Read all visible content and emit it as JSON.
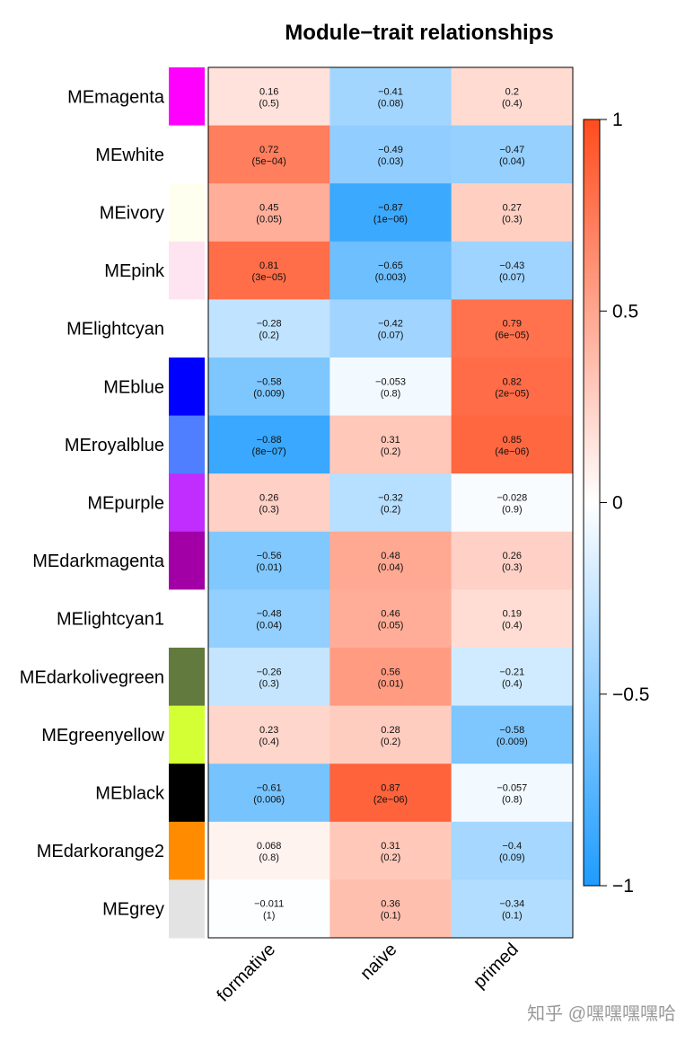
{
  "chart_data": {
    "type": "heatmap",
    "title": "Module−trait relationships",
    "columns": [
      "formative",
      "naive",
      "primed"
    ],
    "rows": [
      {
        "label": "MEmagenta",
        "module_color": "#FF00FF",
        "values": [
          0.16,
          -0.41,
          0.2
        ],
        "value_labels": [
          "0.16",
          "−0.41",
          "0.2"
        ],
        "pvalues": [
          "(0.5)",
          "(0.08)",
          "(0.4)"
        ]
      },
      {
        "label": "MEwhite",
        "module_color": "#FFFFFF",
        "values": [
          0.72,
          -0.49,
          -0.47
        ],
        "value_labels": [
          "0.72",
          "−0.49",
          "−0.47"
        ],
        "pvalues": [
          "(5e−04)",
          "(0.03)",
          "(0.04)"
        ]
      },
      {
        "label": "MEivory",
        "module_color": "#FFFFF0",
        "values": [
          0.45,
          -0.87,
          0.27
        ],
        "value_labels": [
          "0.45",
          "−0.87",
          "0.27"
        ],
        "pvalues": [
          "(0.05)",
          "(1e−06)",
          "(0.3)"
        ]
      },
      {
        "label": "MEpink",
        "module_color": "#FDE4F0",
        "values": [
          0.81,
          -0.65,
          -0.43
        ],
        "value_labels": [
          "0.81",
          "−0.65",
          "−0.43"
        ],
        "pvalues": [
          "(3e−05)",
          "(0.003)",
          "(0.07)"
        ]
      },
      {
        "label": "MElightcyan",
        "module_color": "#FFFFFF",
        "values": [
          -0.28,
          -0.42,
          0.79
        ],
        "value_labels": [
          "−0.28",
          "−0.42",
          "0.79"
        ],
        "pvalues": [
          "(0.2)",
          "(0.07)",
          "(6e−05)"
        ]
      },
      {
        "label": "MEblue",
        "module_color": "#0000FF",
        "values": [
          -0.58,
          -0.053,
          0.82
        ],
        "value_labels": [
          "−0.58",
          "−0.053",
          "0.82"
        ],
        "pvalues": [
          "(0.009)",
          "(0.8)",
          "(2e−05)"
        ]
      },
      {
        "label": "MEroyalblue",
        "module_color": "#4F7FFF",
        "values": [
          -0.88,
          0.31,
          0.85
        ],
        "value_labels": [
          "−0.88",
          "0.31",
          "0.85"
        ],
        "pvalues": [
          "(8e−07)",
          "(0.2)",
          "(4e−06)"
        ]
      },
      {
        "label": "MEpurple",
        "module_color": "#C12CFF",
        "values": [
          0.26,
          -0.32,
          -0.028
        ],
        "value_labels": [
          "0.26",
          "−0.32",
          "−0.028"
        ],
        "pvalues": [
          "(0.3)",
          "(0.2)",
          "(0.9)"
        ]
      },
      {
        "label": "MEdarkmagenta",
        "module_color": "#A200A6",
        "values": [
          -0.56,
          0.48,
          0.26
        ],
        "value_labels": [
          "−0.56",
          "0.48",
          "0.26"
        ],
        "pvalues": [
          "(0.01)",
          "(0.04)",
          "(0.3)"
        ]
      },
      {
        "label": "MElightcyan1",
        "module_color": "#FFFFFF",
        "values": [
          -0.48,
          0.46,
          0.19
        ],
        "value_labels": [
          "−0.48",
          "0.46",
          "0.19"
        ],
        "pvalues": [
          "(0.04)",
          "(0.05)",
          "(0.4)"
        ]
      },
      {
        "label": "MEdarkolivegreen",
        "module_color": "#627A3E",
        "values": [
          -0.26,
          0.56,
          -0.21
        ],
        "value_labels": [
          "−0.26",
          "0.56",
          "−0.21"
        ],
        "pvalues": [
          "(0.3)",
          "(0.01)",
          "(0.4)"
        ]
      },
      {
        "label": "MEgreenyellow",
        "module_color": "#D4FF35",
        "values": [
          0.23,
          0.28,
          -0.58
        ],
        "value_labels": [
          "0.23",
          "0.28",
          "−0.58"
        ],
        "pvalues": [
          "(0.4)",
          "(0.2)",
          "(0.009)"
        ]
      },
      {
        "label": "MEblack",
        "module_color": "#000000",
        "values": [
          -0.61,
          0.87,
          -0.057
        ],
        "value_labels": [
          "−0.61",
          "0.87",
          "−0.057"
        ],
        "pvalues": [
          "(0.006)",
          "(2e−06)",
          "(0.8)"
        ]
      },
      {
        "label": "MEdarkorange2",
        "module_color": "#FF8C00",
        "values": [
          0.068,
          0.31,
          -0.4
        ],
        "value_labels": [
          "0.068",
          "0.31",
          "−0.4"
        ],
        "pvalues": [
          "(0.8)",
          "(0.2)",
          "(0.09)"
        ]
      },
      {
        "label": "MEgrey",
        "module_color": "#E3E3E3",
        "values": [
          -0.011,
          0.36,
          -0.34
        ],
        "value_labels": [
          "−0.011",
          "0.36",
          "−0.34"
        ],
        "pvalues": [
          "(1)",
          "(0.1)",
          "(0.1)"
        ]
      }
    ],
    "color_scale": {
      "range": [
        -1,
        1
      ],
      "ticks": [
        1,
        0.5,
        0,
        -0.5,
        -1
      ],
      "tick_labels": [
        "1",
        "0.5",
        "0",
        "−0.5",
        "−1"
      ],
      "colors": {
        "negative": "#1E9CFE",
        "zero": "#FFFFFF",
        "positive": "#FF4C1E"
      }
    }
  },
  "watermark": "知乎 @嘿嘿嘿嘿哈"
}
